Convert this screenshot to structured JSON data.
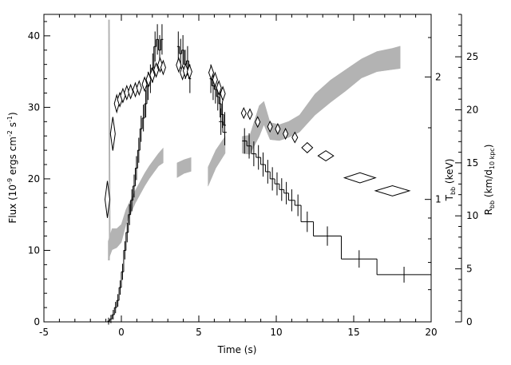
{
  "chart_data": {
    "type": "line",
    "title": "",
    "xlabel": "Time (s)",
    "xlim": [
      -5,
      20
    ],
    "xticks": [
      -5,
      0,
      5,
      10,
      15,
      20
    ],
    "left_axis": {
      "label": {
        "main": "Flux (10",
        "sup1": "-9",
        "mid": " ergs cm",
        "sup2": "-2",
        "mid2": " s",
        "sup3": "-1",
        "end": ")"
      },
      "ylim": [
        0,
        43
      ],
      "ticks": [
        0,
        10,
        20,
        30,
        40
      ]
    },
    "temp_axis": {
      "label": {
        "main": "T",
        "sub": "bb",
        "end": " (keV)"
      },
      "scale": "log",
      "ylim": [
        0.5,
        2.85
      ],
      "ticks": [
        1,
        2
      ],
      "tick_labels": [
        "1",
        "2"
      ]
    },
    "radius_axis": {
      "label": {
        "main": "R",
        "sub": "bb",
        "mid": " (km/d",
        "sub2": "10 kpc",
        "end": ")"
      },
      "ylim": [
        0,
        29
      ],
      "ticks": [
        0,
        5,
        10,
        15,
        20,
        25
      ]
    },
    "series": [
      {
        "name": "",
        "role": "flux-histogram",
        "axis": "left",
        "steps": [
          [
            -0.9,
            -0.75,
            0.1
          ],
          [
            -0.75,
            -0.6,
            0.4
          ],
          [
            -0.6,
            -0.45,
            1.0
          ],
          [
            -0.45,
            -0.3,
            2.0
          ],
          [
            -0.3,
            -0.15,
            3.0
          ],
          [
            -0.15,
            0.0,
            4.8
          ],
          [
            0.0,
            0.15,
            7.0
          ],
          [
            0.15,
            0.3,
            10.0
          ],
          [
            0.3,
            0.45,
            12.5
          ],
          [
            0.45,
            0.6,
            15.0
          ],
          [
            0.6,
            0.75,
            17.0
          ],
          [
            0.75,
            0.9,
            19.0
          ],
          [
            0.9,
            1.05,
            21.5
          ],
          [
            1.05,
            1.2,
            24.0
          ],
          [
            1.2,
            1.35,
            27.0
          ],
          [
            1.35,
            1.5,
            28.5
          ],
          [
            1.5,
            1.65,
            30.5
          ],
          [
            1.65,
            1.8,
            33.0
          ],
          [
            1.8,
            1.95,
            34.0
          ],
          [
            1.95,
            2.1,
            35.5
          ],
          [
            2.1,
            2.25,
            38.5
          ],
          [
            2.25,
            2.4,
            39.5
          ],
          [
            2.4,
            2.55,
            38.0
          ],
          [
            2.55,
            2.7,
            39.5
          ],
          [
            3.6,
            3.75,
            38.5
          ],
          [
            3.75,
            3.9,
            37.5
          ],
          [
            3.9,
            4.05,
            38.0
          ],
          [
            4.05,
            4.2,
            36.0
          ],
          [
            4.2,
            4.35,
            36.5
          ],
          [
            4.35,
            4.5,
            34.0
          ],
          [
            5.7,
            5.85,
            34.0
          ],
          [
            5.85,
            6.0,
            33.0
          ],
          [
            6.0,
            6.15,
            32.5
          ],
          [
            6.15,
            6.3,
            31.5
          ],
          [
            6.3,
            6.45,
            30.5
          ],
          [
            6.45,
            6.6,
            29.0
          ],
          [
            6.6,
            6.75,
            27.5
          ],
          [
            6.3,
            6.55,
            28.0
          ],
          [
            6.55,
            6.8,
            26.5
          ],
          [
            7.8,
            8.1,
            25.3
          ],
          [
            8.1,
            8.4,
            24.6
          ],
          [
            8.4,
            8.7,
            23.5
          ],
          [
            8.7,
            9.0,
            23.0
          ],
          [
            9.0,
            9.3,
            22.0
          ],
          [
            9.3,
            9.6,
            21.0
          ],
          [
            9.6,
            9.9,
            20.0
          ],
          [
            9.9,
            10.2,
            19.3
          ],
          [
            10.2,
            10.5,
            18.5
          ],
          [
            10.5,
            10.8,
            18.0
          ],
          [
            10.8,
            11.2,
            17.0
          ],
          [
            11.2,
            11.6,
            16.3
          ],
          [
            11.6,
            12.4,
            14.0
          ],
          [
            12.4,
            14.2,
            12.0
          ],
          [
            14.2,
            16.5,
            8.8
          ],
          [
            16.5,
            20.0,
            6.6
          ]
        ]
      },
      {
        "name": "",
        "role": "temperature-points",
        "axis": "temp",
        "points": [
          [
            -0.9,
            1.0,
            0.06,
            0.1
          ],
          [
            -0.55,
            1.45,
            0.07,
            0.09
          ],
          [
            -0.3,
            1.72,
            0.07,
            0.04
          ],
          [
            -0.1,
            1.76,
            0.05,
            0.03
          ],
          [
            0.1,
            1.8,
            0.05,
            0.03
          ],
          [
            0.35,
            1.83,
            0.05,
            0.03
          ],
          [
            0.6,
            1.84,
            0.05,
            0.03
          ],
          [
            0.9,
            1.86,
            0.05,
            0.03
          ],
          [
            1.15,
            1.88,
            0.05,
            0.03
          ],
          [
            1.5,
            1.92,
            0.05,
            0.03
          ],
          [
            1.75,
            1.97,
            0.05,
            0.03
          ],
          [
            2.0,
            2.02,
            0.05,
            0.03
          ],
          [
            2.25,
            2.08,
            0.05,
            0.03
          ],
          [
            2.5,
            2.14,
            0.05,
            0.03
          ],
          [
            2.7,
            2.11,
            0.05,
            0.03
          ],
          [
            3.7,
            2.14,
            0.05,
            0.03
          ],
          [
            3.95,
            2.05,
            0.05,
            0.03
          ],
          [
            4.15,
            2.07,
            0.05,
            0.03
          ],
          [
            4.4,
            2.06,
            0.05,
            0.03
          ],
          [
            5.8,
            2.05,
            0.05,
            0.03
          ],
          [
            6.05,
            1.97,
            0.05,
            0.03
          ],
          [
            6.3,
            1.88,
            0.05,
            0.03
          ],
          [
            6.55,
            1.82,
            0.05,
            0.03
          ],
          [
            7.9,
            1.63,
            0.07,
            0.02
          ],
          [
            8.3,
            1.62,
            0.08,
            0.02
          ],
          [
            8.8,
            1.55,
            0.08,
            0.02
          ],
          [
            9.6,
            1.51,
            0.12,
            0.02
          ],
          [
            10.1,
            1.49,
            0.12,
            0.02
          ],
          [
            10.6,
            1.45,
            0.15,
            0.02
          ],
          [
            11.2,
            1.42,
            0.18,
            0.02
          ],
          [
            12.0,
            1.34,
            0.35,
            0.02
          ],
          [
            13.2,
            1.28,
            0.5,
            0.02
          ],
          [
            15.4,
            1.13,
            1.0,
            0.02
          ],
          [
            17.5,
            1.05,
            1.1,
            0.02
          ]
        ]
      },
      {
        "name": "",
        "role": "radius-band",
        "axis": "radius",
        "segments": [
          [
            [
              -0.85,
              5.8,
              7.6
            ],
            [
              -0.6,
              6.8,
              8.8
            ],
            [
              -0.3,
              7.0,
              8.8
            ],
            [
              0.0,
              7.5,
              9.2
            ],
            [
              0.3,
              9.2,
              10.6
            ],
            [
              0.6,
              10.2,
              11.5
            ],
            [
              0.9,
              11.2,
              12.4
            ],
            [
              1.2,
              12.0,
              13.2
            ],
            [
              1.5,
              12.8,
              14.0
            ],
            [
              1.8,
              13.5,
              14.7
            ],
            [
              2.1,
              14.1,
              15.3
            ],
            [
              2.4,
              14.7,
              15.9
            ],
            [
              2.7,
              15.0,
              16.4
            ]
          ],
          [
            [
              3.6,
              13.6,
              15.0
            ],
            [
              4.05,
              14.0,
              15.3
            ],
            [
              4.5,
              14.2,
              15.5
            ]
          ],
          [
            [
              5.6,
              12.8,
              14.6
            ],
            [
              6.1,
              14.5,
              16.2
            ],
            [
              6.7,
              15.9,
              17.5
            ]
          ],
          [
            [
              7.8,
              15.9,
              17.5
            ],
            [
              8.3,
              15.8,
              17.6
            ],
            [
              8.9,
              17.5,
              20.4
            ],
            [
              9.2,
              18.6,
              20.8
            ],
            [
              9.6,
              17.2,
              18.8
            ],
            [
              10.2,
              17.1,
              18.6
            ],
            [
              10.8,
              17.4,
              18.9
            ],
            [
              11.5,
              17.9,
              19.5
            ],
            [
              12.5,
              19.5,
              21.5
            ],
            [
              13.5,
              20.7,
              22.8
            ],
            [
              14.5,
              21.8,
              23.8
            ],
            [
              15.5,
              23.0,
              24.8
            ],
            [
              16.5,
              23.6,
              25.5
            ],
            [
              17.5,
              23.8,
              25.8
            ],
            [
              18.0,
              23.9,
              26.0
            ]
          ]
        ]
      },
      {
        "name": "",
        "role": "rise-spike",
        "axis": "radius",
        "points": [
          [
            -0.8,
            28.5
          ],
          [
            -0.75,
            8.0
          ],
          [
            -0.8,
            5.8
          ]
        ]
      }
    ],
    "colors": {
      "band": "#b3b3b3",
      "line": "#000000",
      "background": "#ffffff"
    },
    "grid": false,
    "legend": "none"
  }
}
